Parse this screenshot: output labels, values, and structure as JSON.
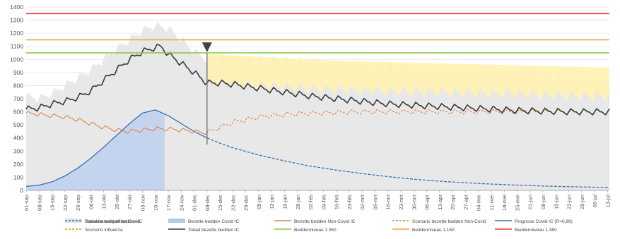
{
  "chart_data": {
    "type": "line",
    "title": "",
    "xlabel": "",
    "ylabel": "",
    "ylim": [
      0,
      1400
    ],
    "yticks": [
      0,
      100,
      200,
      300,
      400,
      500,
      600,
      700,
      800,
      900,
      1000,
      1100,
      1200,
      1300,
      1400
    ],
    "xlim_days": [
      0,
      316
    ],
    "x_tick_labels": [
      "01-sep",
      "08-sep",
      "15-sep",
      "22-sep",
      "29-sep",
      "06-okt",
      "13-okt",
      "20-okt",
      "27-okt",
      "03-nov",
      "10-nov",
      "17-nov",
      "24-nov",
      "01-dec",
      "08-dec",
      "15-dec",
      "22-dec",
      "29-dec",
      "05-jan",
      "12-jan",
      "19-jan",
      "26-jan",
      "02-feb",
      "09-feb",
      "16-feb",
      "23-feb",
      "02-mrt",
      "09-mrt",
      "16-mrt",
      "23-mrt",
      "30-mrt",
      "06-apr",
      "13-apr",
      "20-apr",
      "27-apr",
      "04-mei",
      "11-mei",
      "18-mei",
      "25-mei",
      "01-jun",
      "08-jun",
      "15-jun",
      "22-jun",
      "29-jun",
      "06-jul",
      "13-jul"
    ],
    "grid": true,
    "legend_position": "bottom",
    "legend": [
      {
        "name": "Totaal benodigde bedden IC",
        "color": "#e0e0e0",
        "style": "fill"
      },
      {
        "name": "Bezette bedden Covid IC",
        "color": "#b4c7e7",
        "style": "fill"
      },
      {
        "name": "Bezette bedden Non-Covid IC",
        "color": "#e07b39",
        "style": "solid"
      },
      {
        "name": "Scenario bezette bedden Non-Covid",
        "color": "#e07b39",
        "style": "dashed"
      },
      {
        "name": "Prognose Covid IC (R=0,89)",
        "color": "#3a6fb5",
        "style": "solid"
      },
      {
        "name": "Scenario kerst effect Covid",
        "color": "#3a6fb5",
        "style": "dashed"
      },
      {
        "name": "Scenario influenza",
        "color": "#d4a017",
        "style": "dashed"
      },
      {
        "name": "Totaal bezette bedden IC",
        "color": "#3a3a3a",
        "style": "solid"
      },
      {
        "name": "Beddenniveau 1.050",
        "color": "#8cc63f",
        "style": "solid"
      },
      {
        "name": "Beddenniveau 1.150",
        "color": "#f0a050",
        "style": "solid"
      },
      {
        "name": "Beddenniveau 1.350",
        "color": "#e53935",
        "style": "solid"
      }
    ],
    "bed_levels": [
      {
        "name": "Beddenniveau 1.050",
        "value": 1050,
        "color": "#8cc63f"
      },
      {
        "name": "Beddenniveau 1.150",
        "value": 1150,
        "color": "#f0a050"
      },
      {
        "name": "Beddenniveau 1.350",
        "value": 1350,
        "color": "#e53935"
      }
    ],
    "today_marker_day": 98,
    "series": [
      {
        "name": "Prognose Covid IC (R=0,89)",
        "x_days": [
          0,
          7,
          14,
          21,
          28,
          35,
          42,
          49,
          56,
          63,
          70,
          77,
          84,
          91,
          98,
          105,
          112,
          126,
          140,
          154,
          168,
          182,
          196,
          210,
          224,
          238,
          252,
          266,
          280,
          294,
          308,
          316
        ],
        "values": [
          30,
          40,
          65,
          110,
          170,
          245,
          330,
          420,
          510,
          590,
          615,
          570,
          510,
          450,
          400,
          360,
          325,
          270,
          225,
          185,
          155,
          128,
          105,
          85,
          70,
          58,
          48,
          40,
          33,
          28,
          24,
          22
        ]
      },
      {
        "name": "Totaal bezette bedden IC",
        "x_days": [
          0,
          7,
          14,
          21,
          28,
          35,
          42,
          49,
          56,
          63,
          70,
          73,
          77,
          84,
          91,
          98,
          105,
          112,
          126,
          140,
          154,
          168,
          182,
          196,
          210,
          224,
          238,
          252,
          266,
          280,
          294,
          308,
          316
        ],
        "values": [
          620,
          630,
          660,
          680,
          710,
          760,
          840,
          920,
          1000,
          1060,
          1090,
          1100,
          1040,
          970,
          900,
          820,
          820,
          810,
          780,
          750,
          720,
          700,
          680,
          660,
          650,
          640,
          630,
          620,
          610,
          605,
          600,
          600,
          600
        ]
      },
      {
        "name": "Bezette bedden Non-Covid IC",
        "x_days": [
          0,
          7,
          14,
          21,
          28,
          35,
          42,
          49,
          56,
          63,
          70,
          77,
          84,
          91,
          98
        ],
        "values": [
          590,
          580,
          570,
          560,
          540,
          510,
          480,
          460,
          450,
          460,
          470,
          470,
          460,
          450,
          440
        ]
      },
      {
        "name": "Scenario bezette bedden Non-Covid",
        "x_days": [
          98,
          105,
          112,
          126,
          140,
          154,
          168,
          182,
          196,
          210,
          224,
          238,
          252,
          266,
          280,
          294,
          308,
          316
        ],
        "values": [
          440,
          480,
          520,
          560,
          580,
          590,
          595,
          600,
          600,
          600,
          600,
          600,
          600,
          600,
          600,
          600,
          600,
          600
        ]
      },
      {
        "name": "Totaal benodigde bedden IC",
        "x_days": [
          0,
          7,
          14,
          21,
          28,
          35,
          42,
          49,
          56,
          63,
          70,
          77,
          84,
          91,
          98,
          112,
          126,
          140,
          154,
          168,
          182,
          196,
          210,
          224,
          238,
          252,
          266,
          280,
          294,
          308,
          316
        ],
        "values": [
          720,
          700,
          740,
          800,
          860,
          920,
          1000,
          1080,
          1150,
          1220,
          1260,
          1240,
          1150,
          1060,
          1000,
          1010,
          1000,
          990,
          970,
          960,
          950,
          940,
          930,
          920,
          910,
          900,
          890,
          870,
          860,
          850,
          840
        ]
      },
      {
        "name": "Scenario influenza",
        "x_days": [
          98,
          112,
          126,
          140,
          154,
          168,
          182,
          196,
          210,
          224,
          238,
          252,
          266,
          280,
          294,
          308,
          316
        ],
        "values": [
          1040,
          1030,
          1020,
          1010,
          1000,
          990,
          985,
          980,
          975,
          970,
          965,
          960,
          955,
          950,
          945,
          940,
          940
        ]
      }
    ]
  }
}
